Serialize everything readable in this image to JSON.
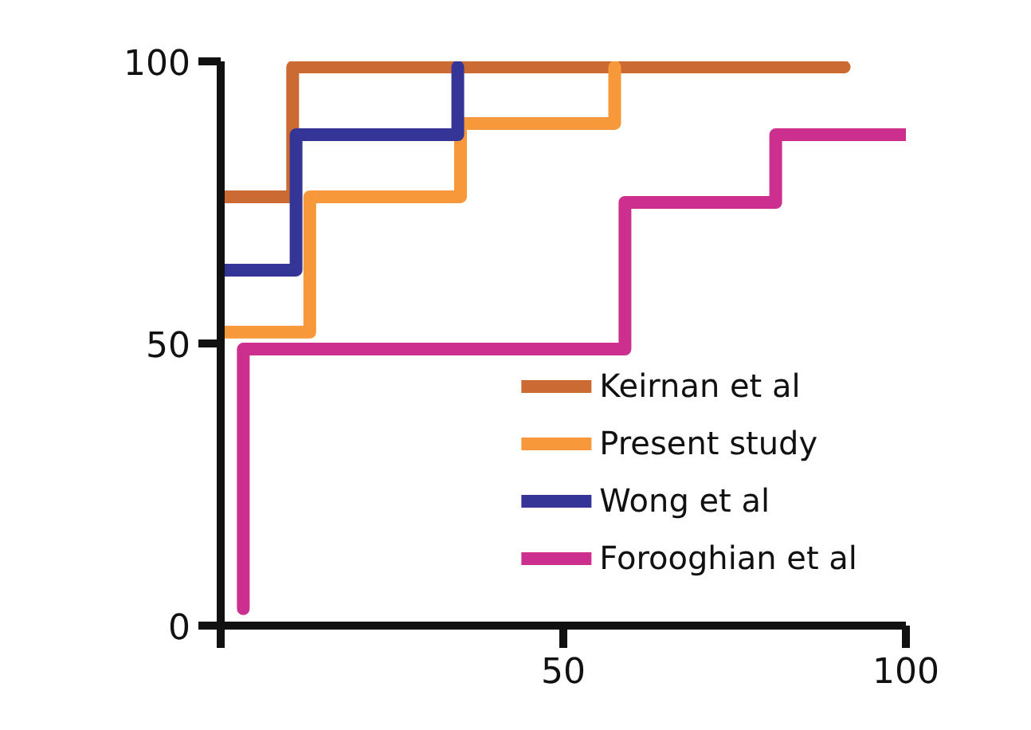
{
  "chart_data": {
    "type": "step",
    "series": [
      {
        "name": "Keirnan et al",
        "color": "#cc6a33",
        "x": [
          0,
          10.5,
          91
        ],
        "values": [
          76,
          99,
          99
        ]
      },
      {
        "name": "Present study",
        "color": "#f7993a",
        "x": [
          0,
          13,
          35,
          57.5
        ],
        "values": [
          52,
          76,
          89,
          99
        ]
      },
      {
        "name": "Wong et al",
        "color": "#353597",
        "x": [
          0,
          11,
          34.6
        ],
        "values": [
          63,
          87,
          99
        ]
      },
      {
        "name": "Forooghian et al",
        "color": "#cc2f8e",
        "x": [
          3.3,
          3.3,
          59,
          81,
          100
        ],
        "values": [
          3,
          49,
          75,
          87,
          87
        ]
      }
    ],
    "xlim": [
      0,
      100
    ],
    "ylim": [
      0,
      100
    ],
    "xticks": [
      {
        "value": 0,
        "label": null
      },
      50,
      100
    ],
    "yticks": [
      0,
      50,
      100
    ],
    "grid": false,
    "legend": "bottom right",
    "line_style": "solid"
  }
}
